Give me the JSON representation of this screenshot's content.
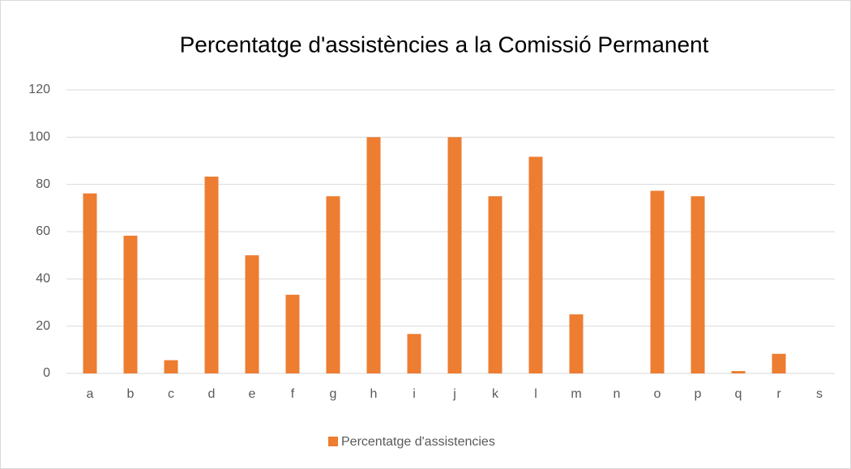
{
  "chart_data": {
    "type": "bar",
    "title": "Percentatge d'assistències a la Comissió Permanent",
    "categories": [
      "a",
      "b",
      "c",
      "d",
      "e",
      "f",
      "g",
      "h",
      "i",
      "j",
      "k",
      "l",
      "m",
      "n",
      "o",
      "p",
      "q",
      "r",
      "s"
    ],
    "series": [
      {
        "name": "Percentatge d'assistencies",
        "color": "#ed7d31",
        "values": [
          76.2,
          58.3,
          5.6,
          83.3,
          50,
          33.3,
          75,
          100,
          16.7,
          100,
          75,
          91.7,
          25,
          0,
          77.3,
          75,
          1,
          8.3,
          0
        ]
      }
    ],
    "ylim": [
      0,
      120
    ],
    "yticks": [
      0,
      20,
      40,
      60,
      80,
      100,
      120
    ],
    "grid": true,
    "legend": "bottom"
  }
}
